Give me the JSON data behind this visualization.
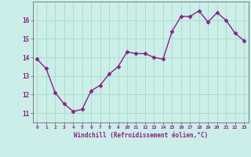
{
  "x": [
    0,
    1,
    2,
    3,
    4,
    5,
    6,
    7,
    8,
    9,
    10,
    11,
    12,
    13,
    14,
    15,
    16,
    17,
    18,
    19,
    20,
    21,
    22,
    23
  ],
  "y": [
    13.9,
    13.4,
    12.1,
    11.5,
    11.1,
    11.2,
    12.2,
    12.5,
    13.1,
    13.5,
    14.3,
    14.2,
    14.2,
    14.0,
    13.9,
    15.4,
    16.2,
    16.2,
    16.5,
    15.9,
    16.4,
    16.0,
    15.3,
    14.9
  ],
  "xlabel": "Windchill (Refroidissement éolien,°C)",
  "ylim": [
    10.5,
    17.0
  ],
  "xlim": [
    -0.5,
    23.5
  ],
  "yticks": [
    11,
    12,
    13,
    14,
    15,
    16
  ],
  "xticks": [
    0,
    1,
    2,
    3,
    4,
    5,
    6,
    7,
    8,
    9,
    10,
    11,
    12,
    13,
    14,
    15,
    16,
    17,
    18,
    19,
    20,
    21,
    22,
    23
  ],
  "line_color": "#882288",
  "marker": "D",
  "bg_color": "#cceee8",
  "grid_color": "#aaddcc",
  "axes_color": "#555555",
  "tick_label_color": "#882288",
  "xlabel_color": "#882288"
}
